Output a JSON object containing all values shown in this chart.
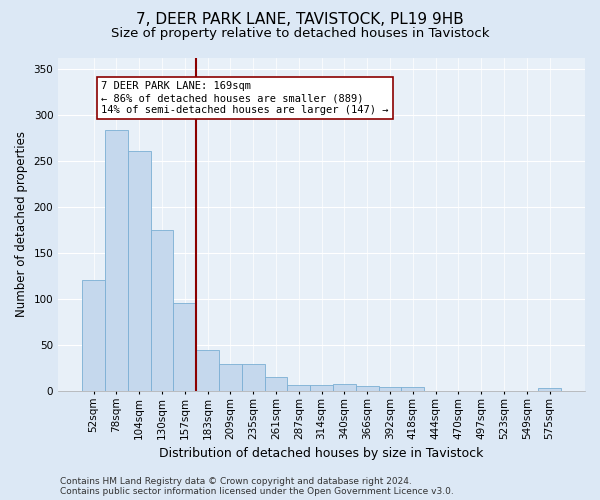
{
  "title": "7, DEER PARK LANE, TAVISTOCK, PL19 9HB",
  "subtitle": "Size of property relative to detached houses in Tavistock",
  "xlabel": "Distribution of detached houses by size in Tavistock",
  "ylabel": "Number of detached properties",
  "categories": [
    "52sqm",
    "78sqm",
    "104sqm",
    "130sqm",
    "157sqm",
    "183sqm",
    "209sqm",
    "235sqm",
    "261sqm",
    "287sqm",
    "314sqm",
    "340sqm",
    "366sqm",
    "392sqm",
    "418sqm",
    "444sqm",
    "470sqm",
    "497sqm",
    "523sqm",
    "549sqm",
    "575sqm"
  ],
  "values": [
    120,
    283,
    261,
    175,
    96,
    45,
    29,
    29,
    15,
    7,
    6,
    8,
    5,
    4,
    4,
    0,
    0,
    0,
    0,
    0,
    3
  ],
  "bar_color": "#c5d8ed",
  "bar_edge_color": "#7bafd4",
  "vline_x": 4.5,
  "vline_color": "#8b0000",
  "annotation_text": "7 DEER PARK LANE: 169sqm\n← 86% of detached houses are smaller (889)\n14% of semi-detached houses are larger (147) →",
  "ylim": [
    0,
    362
  ],
  "yticks": [
    0,
    50,
    100,
    150,
    200,
    250,
    300,
    350
  ],
  "bg_color": "#dce8f5",
  "plot_bg_color": "#e8f0f8",
  "grid_color": "#ffffff",
  "footer": "Contains HM Land Registry data © Crown copyright and database right 2024.\nContains public sector information licensed under the Open Government Licence v3.0.",
  "title_fontsize": 11,
  "subtitle_fontsize": 9.5,
  "xlabel_fontsize": 9,
  "ylabel_fontsize": 8.5,
  "tick_fontsize": 7.5,
  "footer_fontsize": 6.5,
  "annotation_fontsize": 7.5
}
